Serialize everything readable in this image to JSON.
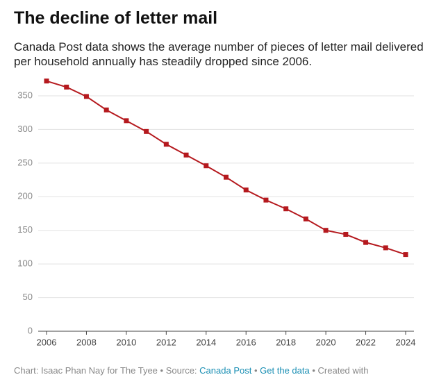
{
  "chart_data": {
    "type": "line",
    "title": "The decline of letter mail",
    "subtitle": "Canada Post data shows the average number of pieces of letter mail delivered per household annually has steadily dropped since 2006.",
    "x": [
      2006,
      2007,
      2008,
      2009,
      2010,
      2011,
      2012,
      2013,
      2014,
      2015,
      2016,
      2017,
      2018,
      2019,
      2020,
      2021,
      2022,
      2023,
      2024
    ],
    "series": [
      {
        "name": "Letter mail per household",
        "color": "#b5191e",
        "values": [
          372,
          363,
          349,
          329,
          313,
          297,
          278,
          262,
          246,
          229,
          210,
          195,
          182,
          167,
          150,
          144,
          132,
          124,
          114
        ]
      }
    ],
    "xlim": [
      2006,
      2024
    ],
    "xticks": [
      2006,
      2008,
      2010,
      2012,
      2014,
      2016,
      2018,
      2020,
      2022,
      2024
    ],
    "ylim": [
      0,
      350
    ],
    "yticks": [
      0,
      50,
      100,
      150,
      200,
      250,
      300,
      350
    ],
    "grid": true,
    "footer": [
      "Chart: Isaac Phan Nay for The Tyee",
      "•",
      "Source:",
      "Canada Post",
      "•",
      "Get the data",
      "•",
      "Created with"
    ]
  }
}
